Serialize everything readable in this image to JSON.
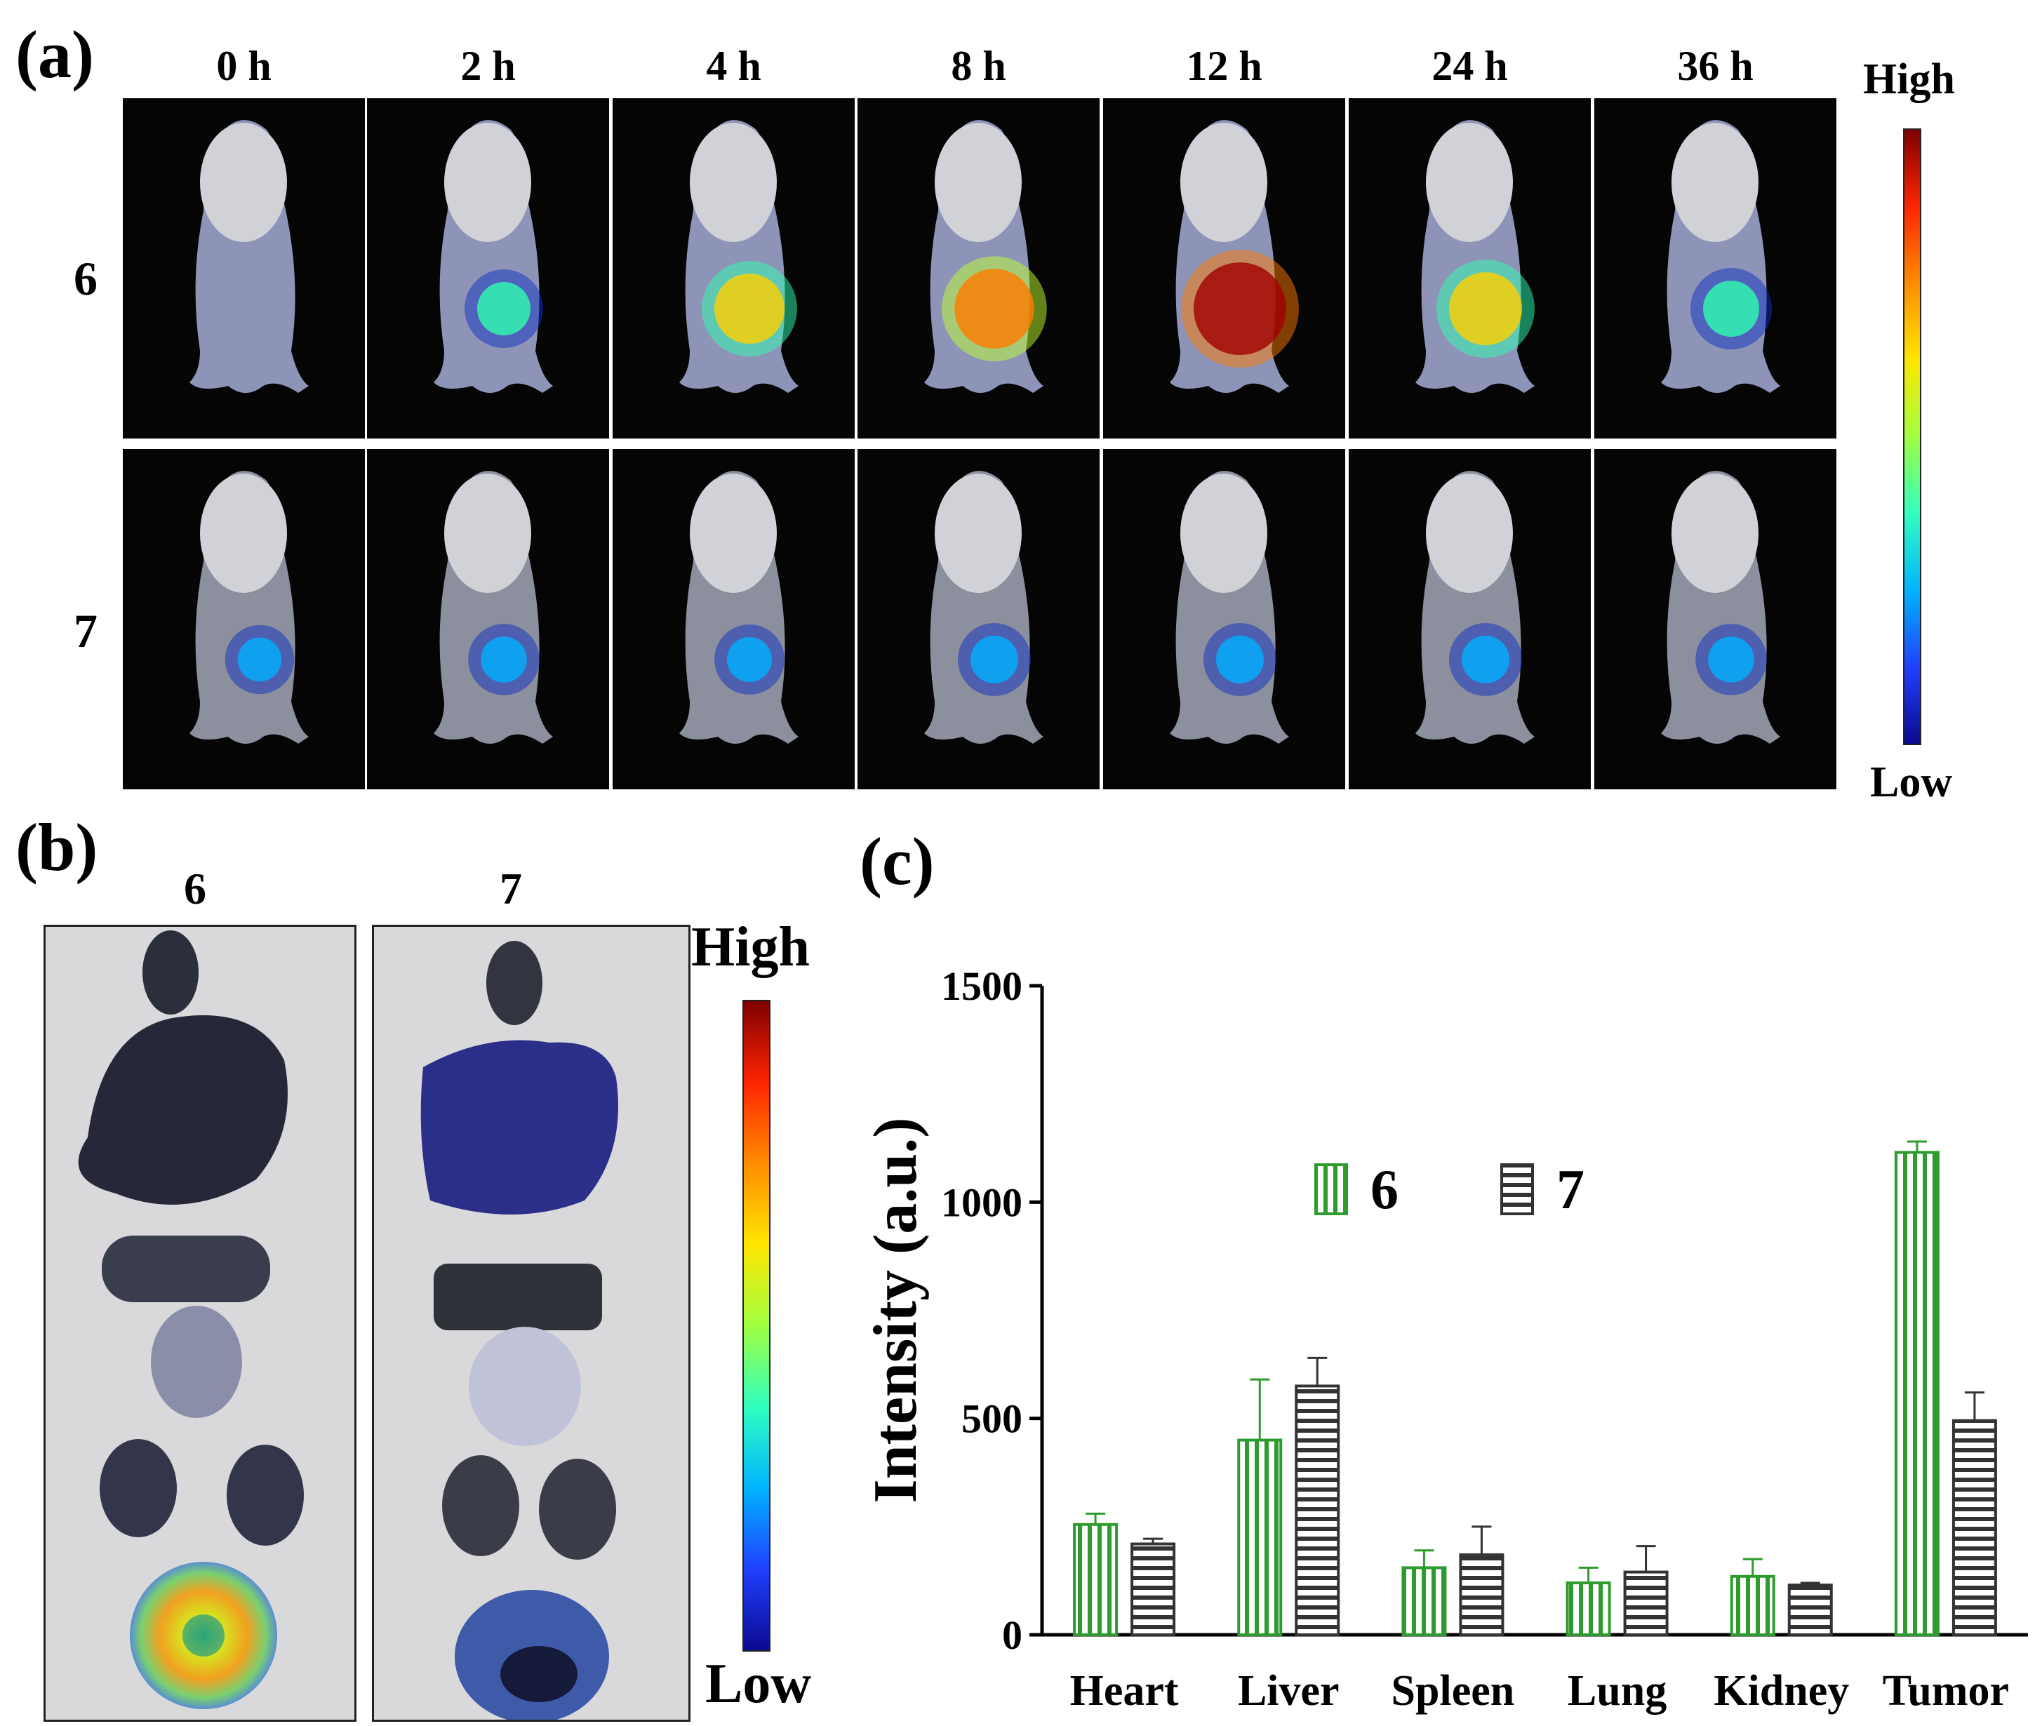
{
  "panel_a": {
    "label": "(a)",
    "time_points": [
      "0 h",
      "2 h",
      "4 h",
      "8 h",
      "12 h",
      "24 h",
      "36 h"
    ],
    "rows": [
      "6",
      "7"
    ],
    "scale_high": "High",
    "scale_low": "Low"
  },
  "panel_b": {
    "label": "(b)",
    "columns": [
      "6",
      "7"
    ],
    "scale_high": "High",
    "scale_low": "Low"
  },
  "panel_c": {
    "label": "(c)"
  },
  "colors": {
    "series6": "#2e9b2e",
    "series7": "#333333",
    "image_bg": "#050505"
  },
  "chart_data": {
    "type": "bar",
    "title": "",
    "xlabel": "",
    "ylabel": "Intensity (a.u.)",
    "ylim": [
      0,
      1500
    ],
    "yticks": [
      0,
      500,
      1000,
      1500
    ],
    "categories": [
      "Heart",
      "Liver",
      "Spleen",
      "Lung",
      "Kidney",
      "Tumor"
    ],
    "series": [
      {
        "name": "6",
        "values": [
          255,
          450,
          155,
          120,
          135,
          1115
        ],
        "errors": [
          25,
          140,
          40,
          35,
          40,
          25
        ],
        "pattern": "vertical-stripes"
      },
      {
        "name": "7",
        "values": [
          210,
          575,
          185,
          145,
          115,
          495
        ],
        "errors": [
          12,
          65,
          65,
          60,
          5,
          65
        ],
        "pattern": "horizontal-stripes"
      }
    ],
    "legend_position": "top-center"
  }
}
